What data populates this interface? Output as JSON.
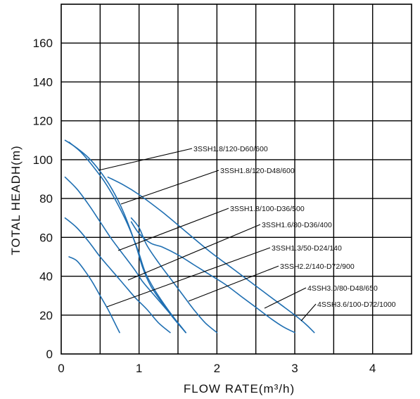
{
  "chart_data": {
    "type": "line",
    "title": "",
    "xlabel": "FLOW RATE(m³/h)",
    "ylabel": "TOTAL HEADH(m)",
    "xlim": [
      0,
      4.5
    ],
    "ylim": [
      0,
      180
    ],
    "xticks": [
      0,
      1,
      2,
      3,
      4
    ],
    "xtick_labels": [
      "0",
      "1",
      "2",
      "3",
      "4"
    ],
    "yticks": [
      0,
      20,
      40,
      60,
      80,
      100,
      120,
      140,
      160
    ],
    "ytick_labels": [
      "0",
      "20",
      "40",
      "60",
      "80",
      "100",
      "120",
      "140",
      "160"
    ],
    "grid": true,
    "legend": "callout labels with leader lines",
    "curve_color": "#1f6fb2",
    "series": [
      {
        "name": "3SSH1.8/120-D60/600",
        "x": [
          0.05,
          0.2,
          0.35,
          0.5,
          0.65,
          0.8,
          0.95,
          1.05,
          1.15,
          1.3,
          1.45,
          1.6
        ],
        "y": [
          110,
          106,
          101,
          94,
          85,
          73,
          57,
          44,
          35,
          26,
          18,
          11
        ]
      },
      {
        "name": "3SSH1.8/120-D48/600",
        "x": [
          0.1,
          0.25,
          0.4,
          0.55,
          0.7,
          0.85,
          0.98,
          1.08,
          1.2,
          1.35,
          1.5,
          1.6
        ],
        "y": [
          109,
          104,
          97,
          89,
          79,
          67,
          54,
          42,
          33,
          24,
          16,
          11
        ]
      },
      {
        "name": "3SSH1.8/100-D36/500",
        "x": [
          0.05,
          0.2,
          0.35,
          0.5,
          0.65,
          0.8,
          0.95,
          1.05,
          1.2,
          1.35,
          1.5,
          1.6
        ],
        "y": [
          91,
          85,
          77,
          68,
          59,
          51,
          43,
          37,
          30,
          23,
          16,
          11
        ]
      },
      {
        "name": "3SSH1.6/80-D36/400",
        "x": [
          0.05,
          0.2,
          0.35,
          0.5,
          0.65,
          0.8,
          0.95,
          1.1,
          1.25,
          1.4
        ],
        "y": [
          70,
          65,
          58,
          50,
          43,
          36,
          29,
          23,
          16,
          11
        ]
      },
      {
        "name": "3SSH1.3/50-D24/140",
        "x": [
          0.1,
          0.2,
          0.3,
          0.4,
          0.5,
          0.6,
          0.7,
          0.75
        ],
        "y": [
          50,
          48,
          43,
          37,
          30,
          23,
          15,
          11
        ]
      },
      {
        "name": "3SSH2.2/140-D72/900",
        "x": [
          0.9,
          1.0,
          1.1,
          1.25,
          1.4,
          1.55,
          1.7,
          1.85,
          2.0
        ],
        "y": [
          70,
          65,
          56,
          47,
          39,
          31,
          23,
          16,
          11
        ]
      },
      {
        "name": "4SSH3.0/80-D48/650",
        "x": [
          0.9,
          1.0,
          1.15,
          1.3,
          1.5,
          1.7,
          1.9,
          2.1,
          2.3,
          2.5,
          2.7,
          2.85,
          3.0
        ],
        "y": [
          68,
          62,
          57,
          55,
          51,
          46,
          41,
          36,
          30,
          24,
          18,
          14,
          11
        ]
      },
      {
        "name": "4SSH3.6/100-D72/1000",
        "x": [
          0.6,
          0.8,
          1.0,
          1.3,
          1.6,
          1.9,
          2.2,
          2.5,
          2.8,
          3.0,
          3.15,
          3.25
        ],
        "y": [
          91,
          87,
          82,
          73,
          63,
          53,
          44,
          35,
          26,
          20,
          15,
          11
        ]
      }
    ]
  }
}
